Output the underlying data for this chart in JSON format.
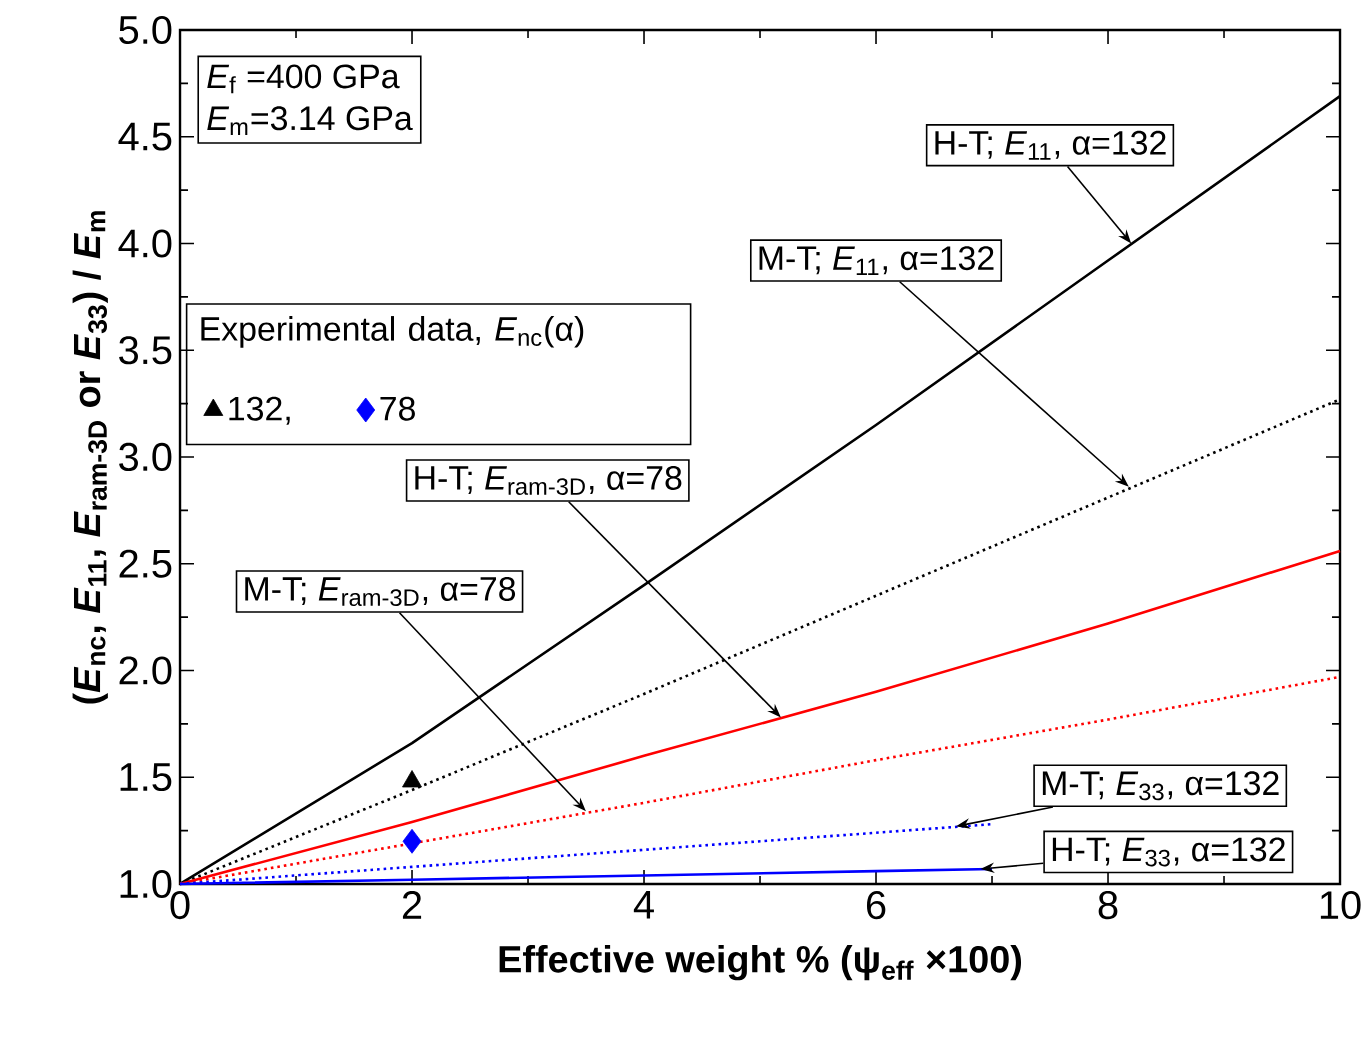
{
  "chart_data": {
    "type": "line",
    "xlabel": "Effective weight % (ψ$_{eff}$ ×100)",
    "ylabel": "(*E*$_{nc}$, *E*$_{11}$, *E*$_{ram-3D}$ or *E*$_{33}$) / *E*$_{m}$",
    "legend_title": "Experimental data, *E*$_{nc}$(α)",
    "legend": "left",
    "xlim": [
      0,
      10
    ],
    "ylim": [
      1.0,
      5.0
    ],
    "xticks": [
      0,
      2,
      4,
      6,
      8,
      10
    ],
    "yticks": [
      {
        "value": 1.0,
        "label": "1.0"
      },
      {
        "value": 1.5,
        "label": "1.5"
      },
      {
        "value": 2.0,
        "label": "2.0"
      },
      {
        "value": 2.5,
        "label": "2.5"
      },
      {
        "value": 3.0,
        "label": "3.0"
      },
      {
        "value": 3.5,
        "label": "3.5"
      },
      {
        "value": 4.0,
        "label": "4.0"
      },
      {
        "value": 4.5,
        "label": "4.5"
      },
      {
        "value": 5.0,
        "label": "5.0"
      }
    ],
    "series": [
      {
        "type": "line",
        "color": "#000000",
        "line_style": "solid",
        "x": [
          0,
          2,
          4,
          6,
          8,
          10
        ],
        "values": [
          1.0,
          1.66,
          2.4,
          3.15,
          3.92,
          4.69
        ]
      },
      {
        "type": "line",
        "color": "#000000",
        "line_style": "dotted",
        "x": [
          0,
          2,
          4,
          6,
          8,
          10
        ],
        "values": [
          1.0,
          1.44,
          1.89,
          2.35,
          2.81,
          3.27
        ]
      },
      {
        "type": "line",
        "color": "#ff0000",
        "line_style": "solid",
        "x": [
          0,
          2,
          4,
          6,
          8,
          10
        ],
        "values": [
          1.0,
          1.29,
          1.6,
          1.9,
          2.22,
          2.56
        ]
      },
      {
        "type": "line",
        "color": "#ff0000",
        "line_style": "dotted",
        "x": [
          0,
          2,
          4,
          6,
          8,
          10
        ],
        "values": [
          1.0,
          1.19,
          1.38,
          1.58,
          1.77,
          1.97
        ]
      },
      {
        "type": "line",
        "color": "#0000ff",
        "line_style": "dotted",
        "x": [
          0,
          2,
          4,
          6,
          7
        ],
        "values": [
          1.0,
          1.08,
          1.16,
          1.24,
          1.28
        ]
      },
      {
        "type": "line",
        "color": "#0000ff",
        "line_style": "solid",
        "x": [
          0,
          2,
          4,
          6,
          7
        ],
        "values": [
          1.0,
          1.02,
          1.04,
          1.06,
          1.07
        ]
      },
      {
        "type": "scatter",
        "name": "132,",
        "color": "#000000",
        "marker": "triangle",
        "x": [
          2
        ],
        "values": [
          1.48
        ]
      },
      {
        "type": "scatter",
        "name": "78",
        "color": "#0000ff",
        "marker": "diamond",
        "x": [
          2
        ],
        "values": [
          1.2
        ]
      }
    ],
    "annotations": [
      "*E*$_{f}$ =400 GPa",
      "*E*$_{m}$=3.14 GPa",
      {
        "text": "H-T; *E*$_{11}$, α=132",
        "x": 8.2,
        "y": 4.0
      },
      {
        "text": "M-T; *E*$_{11}$, α=132",
        "x": 8.18,
        "y": 2.86
      },
      {
        "text": "H-T; *E*$_{ram-3D}$, α=78",
        "x": 5.18,
        "y": 1.78
      },
      {
        "text": "M-T; *E*$_{ram-3D}$, α=78",
        "x": 3.5,
        "y": 1.34
      },
      {
        "text": "M-T; *E*$_{33}$, α=132",
        "x": 6.69,
        "y": 1.27
      },
      {
        "text": "H-T; *E*$_{33}$, α=132",
        "x": 6.9,
        "y": 1.07
      }
    ]
  }
}
